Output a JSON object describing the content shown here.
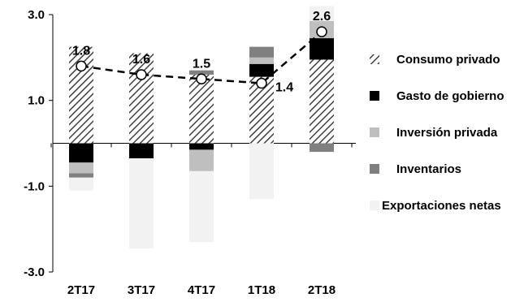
{
  "chart_data": {
    "type": "bar",
    "stacked": true,
    "categories": [
      "2T17",
      "3T17",
      "4T17",
      "1T18",
      "2T18"
    ],
    "ylim": [
      -3.0,
      3.0
    ],
    "yticks": [
      3.0,
      1.0,
      -1.0,
      -3.0
    ],
    "ytick_labels": [
      "3.0",
      "1.0",
      "-1.0",
      "-3.0"
    ],
    "grid": false,
    "legend_position": "right",
    "series": [
      {
        "name": "Consumo privado",
        "key": "consumo",
        "color": "#ffffff",
        "pattern": "diagonal-hatch",
        "values": [
          2.25,
          2.1,
          1.6,
          1.55,
          1.95
        ]
      },
      {
        "name": "Gasto de gobierno",
        "key": "gobierno",
        "color": "#000000",
        "values": [
          -0.45,
          -0.35,
          -0.15,
          0.3,
          0.5
        ]
      },
      {
        "name": "Inversión privada",
        "key": "inversion",
        "color": "#bfbfbf",
        "values": [
          -0.25,
          0.0,
          -0.5,
          0.15,
          0.4
        ]
      },
      {
        "name": "Inventarios",
        "key": "inventarios",
        "color": "#808080",
        "values": [
          -0.1,
          0.0,
          0.1,
          0.25,
          -0.2
        ]
      },
      {
        "name": "Exportaciones netas",
        "key": "exportaciones",
        "color": "#f2f2f2",
        "values": [
          -0.3,
          -2.1,
          -1.65,
          -1.3,
          0.35
        ]
      }
    ],
    "total": {
      "style": "dashed-line-with-circles",
      "values": [
        1.8,
        1.6,
        1.5,
        1.4,
        2.6
      ],
      "labels": [
        "1.8",
        "1.6",
        "1.5",
        "1.4",
        "2.6"
      ]
    }
  }
}
